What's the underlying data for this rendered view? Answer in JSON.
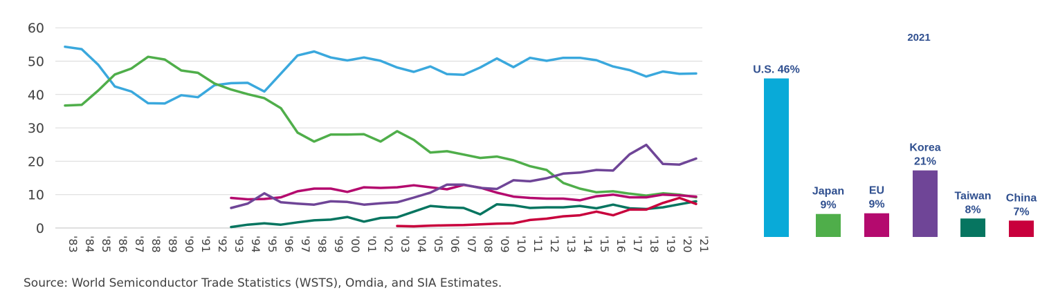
{
  "chart_data": [
    {
      "type": "line",
      "title": "",
      "xlabel": "",
      "ylabel": "",
      "ylim": [
        0,
        60
      ],
      "yticks": [
        0,
        10,
        20,
        30,
        40,
        50,
        60
      ],
      "grid": true,
      "x": [
        "'83",
        "'84",
        "'85",
        "'86",
        "'87",
        "'88",
        "'89",
        "'90",
        "'91",
        "'92",
        "'93",
        "'94",
        "'95",
        "'96",
        "'97",
        "'98",
        "'99",
        "'00",
        "'01",
        "'02",
        "'03",
        "'04",
        "'05",
        "'06",
        "'07",
        "'08",
        "'09",
        "'10",
        "'11",
        "'12",
        "'13",
        "'14",
        "'15",
        "'16",
        "'17",
        "'18",
        "'19",
        "'20",
        "'21"
      ],
      "series": [
        {
          "color": "#3aa8dd",
          "values": [
            54.3,
            53.6,
            48.9,
            42.4,
            40.9,
            37.4,
            37.3,
            39.8,
            39.2,
            42.8,
            43.4,
            43.5,
            40.9,
            46.3,
            51.7,
            52.9,
            51.1,
            50.2,
            51.1,
            50.1,
            48.1,
            46.8,
            48.4,
            46.1,
            45.9,
            48.1,
            50.8,
            48.2,
            51.0,
            50.1,
            51.0,
            51.0,
            50.3,
            48.4,
            47.3,
            45.4,
            46.9,
            46.2,
            46.3
          ]
        },
        {
          "color": "#4fae4a",
          "values": [
            36.7,
            36.9,
            41.2,
            46.0,
            47.8,
            51.3,
            50.5,
            47.2,
            46.5,
            43.3,
            41.5,
            40.1,
            38.9,
            35.9,
            28.6,
            25.9,
            28.0,
            28.0,
            28.1,
            25.9,
            29.0,
            26.4,
            22.6,
            23.0,
            22.0,
            21.0,
            21.4,
            20.3,
            18.5,
            17.4,
            13.5,
            11.8,
            10.7,
            11.0,
            10.3,
            9.7,
            10.4,
            10.0,
            9.2
          ]
        },
        {
          "color": "#b40a6e",
          "values": [
            null,
            null,
            null,
            null,
            null,
            null,
            null,
            null,
            null,
            null,
            9.0,
            8.6,
            8.7,
            9.2,
            11.0,
            11.8,
            11.8,
            10.8,
            12.2,
            12.0,
            12.2,
            12.8,
            12.2,
            11.6,
            12.9,
            12.1,
            10.6,
            9.4,
            9.0,
            8.8,
            8.8,
            8.3,
            9.5,
            10.0,
            9.2,
            9.2,
            10.0,
            9.8,
            9.4
          ]
        },
        {
          "color": "#6f4597",
          "values": [
            null,
            null,
            null,
            null,
            null,
            null,
            null,
            null,
            null,
            null,
            6.0,
            7.3,
            10.4,
            7.7,
            7.3,
            7.0,
            8.0,
            7.8,
            7.0,
            7.4,
            7.7,
            9.1,
            10.6,
            13.0,
            13.0,
            12.0,
            11.7,
            14.3,
            14.0,
            14.9,
            16.3,
            16.6,
            17.4,
            17.2,
            22.1,
            24.9,
            19.2,
            19.0,
            20.8
          ]
        },
        {
          "color": "#067560",
          "values": [
            null,
            null,
            null,
            null,
            null,
            null,
            null,
            null,
            null,
            null,
            0.3,
            1.0,
            1.4,
            1.0,
            1.7,
            2.3,
            2.5,
            3.3,
            1.9,
            3.0,
            3.2,
            4.9,
            6.6,
            6.2,
            6.0,
            4.1,
            7.1,
            6.8,
            6.0,
            6.2,
            6.2,
            6.6,
            5.9,
            7.0,
            5.9,
            5.7,
            6.2,
            7.1,
            8.0
          ]
        },
        {
          "color": "#c8003c",
          "values": [
            null,
            null,
            null,
            null,
            null,
            null,
            null,
            null,
            null,
            null,
            null,
            null,
            null,
            null,
            null,
            null,
            null,
            null,
            null,
            null,
            0.6,
            0.5,
            0.7,
            0.8,
            0.9,
            1.1,
            1.3,
            1.4,
            2.4,
            2.8,
            3.5,
            3.8,
            4.9,
            3.8,
            5.5,
            5.5,
            7.5,
            9.0,
            7.2
          ]
        }
      ]
    },
    {
      "type": "bar",
      "title": "2021",
      "ylim": [
        0,
        50
      ],
      "categories": [
        "U.S.",
        "Japan",
        "EU",
        "Korea",
        "Taiwan",
        "China"
      ],
      "values": [
        46,
        9,
        9,
        21,
        8,
        7
      ],
      "display_heights": [
        45.5,
        6.6,
        6.8,
        19.1,
        5.3,
        4.7
      ],
      "labels": [
        [
          "U.S. 46%"
        ],
        [
          "Japan",
          "9%"
        ],
        [
          "EU",
          "9%"
        ],
        [
          "Korea",
          "21%"
        ],
        [
          "Taiwan",
          "8%"
        ],
        [
          "China",
          "7%"
        ]
      ],
      "colors": [
        "#09aad8",
        "#4fae4a",
        "#b40a6e",
        "#6f4597",
        "#067560",
        "#c8003c"
      ]
    }
  ],
  "source_text": "Source: World Semiconductor Trade Statistics (WSTS), Omdia, and SIA Estimates."
}
